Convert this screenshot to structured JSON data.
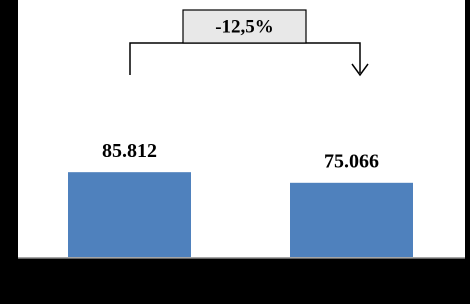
{
  "chart_data": {
    "type": "bar",
    "categories": [
      null,
      null
    ],
    "values": [
      85812,
      75066
    ],
    "value_labels": [
      "85.812",
      "75.066"
    ],
    "color": "#4f81bd",
    "ylim": [
      0,
      260000
    ],
    "annotation": "-12,5%"
  }
}
